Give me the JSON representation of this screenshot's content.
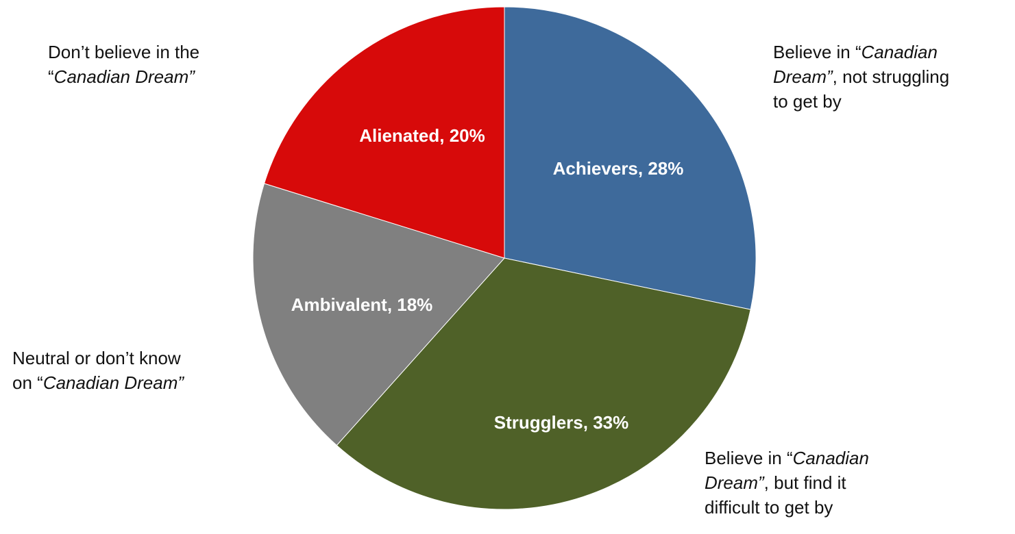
{
  "chart_data": {
    "type": "pie",
    "title": "",
    "slices": [
      {
        "name": "Achievers",
        "value": 28,
        "label": "Achievers, 28%",
        "color": "#3e6a9b",
        "annotation": [
          [
            {
              "text": "Believe in “",
              "italic": false
            },
            {
              "text": "Canadian",
              "italic": true
            }
          ],
          [
            {
              "text": "Dream”",
              "italic": true
            },
            {
              "text": ", not struggling",
              "italic": false
            }
          ],
          [
            {
              "text": "to get by",
              "italic": false
            }
          ]
        ]
      },
      {
        "name": "Strugglers",
        "value": 33,
        "label": "Strugglers, 33%",
        "color": "#4f6128",
        "annotation": [
          [
            {
              "text": "Believe in “",
              "italic": false
            },
            {
              "text": "Canadian",
              "italic": true
            }
          ],
          [
            {
              "text": "Dream”",
              "italic": true
            },
            {
              "text": ", but find it",
              "italic": false
            }
          ],
          [
            {
              "text": "difficult to get by",
              "italic": false
            }
          ]
        ]
      },
      {
        "name": "Ambivalent",
        "value": 18,
        "label": "Ambivalent, 18%",
        "color": "#808080",
        "annotation": [
          [
            {
              "text": "Neutral or don’t know",
              "italic": false
            }
          ],
          [
            {
              "text": "on “",
              "italic": false
            },
            {
              "text": "Canadian Dream”",
              "italic": true
            }
          ]
        ]
      },
      {
        "name": "Alienated",
        "value": 20,
        "label": "Alienated, 20%",
        "color": "#d70a0a",
        "annotation": [
          [
            {
              "text": "Don’t believe in the",
              "italic": false
            }
          ],
          [
            {
              "text": "“",
              "italic": false
            },
            {
              "text": "Canadian Dream”",
              "italic": true
            }
          ]
        ]
      }
    ]
  }
}
